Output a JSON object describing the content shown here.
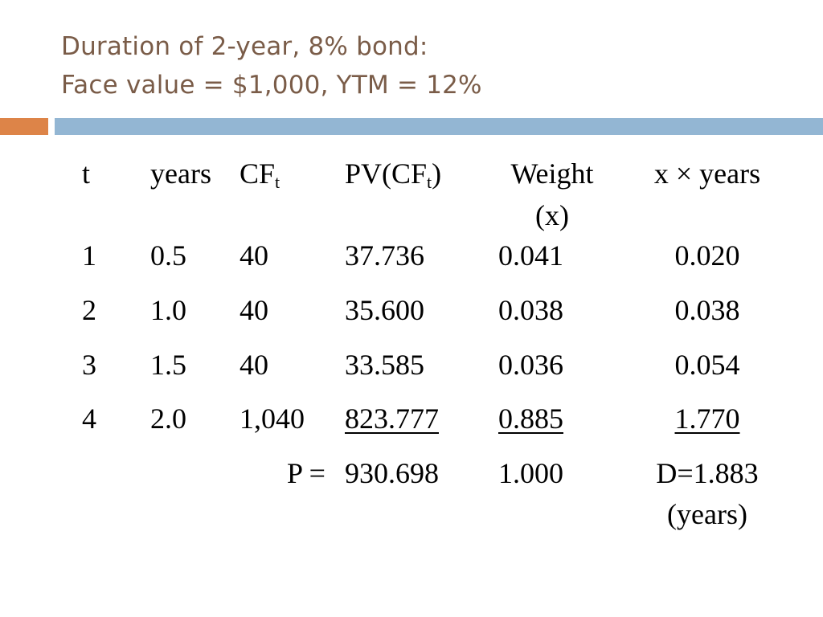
{
  "title": {
    "line1": "Duration of 2-year, 8% bond:",
    "line2": "Face value = $1,000, YTM = 12%"
  },
  "colors": {
    "title": "#7a5c48",
    "accent_orange": "#dd8448",
    "accent_blue": "#93b6d3"
  },
  "table": {
    "headers": {
      "t": "t",
      "years": "years",
      "cf_main": "CF",
      "cf_sub": "t",
      "pv_open": "PV(CF",
      "pv_sub": "t",
      "pv_close": ")",
      "weight_line1": "Weight",
      "weight_line2": "(x)",
      "xyears": "x × years"
    },
    "rows": [
      {
        "t": "1",
        "years": "0.5",
        "cf": "40",
        "pv": "37.736",
        "weight": "0.041",
        "xyears": "0.020"
      },
      {
        "t": "2",
        "years": "1.0",
        "cf": "40",
        "pv": "35.600",
        "weight": "0.038",
        "xyears": "0.038"
      },
      {
        "t": "3",
        "years": "1.5",
        "cf": "40",
        "pv": "33.585",
        "weight": "0.036",
        "xyears": "0.054"
      },
      {
        "t": "4",
        "years": "2.0",
        "cf": "1,040",
        "pv": "823.777",
        "weight": "0.885",
        "xyears": "1.770"
      }
    ],
    "totals": {
      "label": "P =",
      "pv": "930.698",
      "weight": "1.000",
      "duration_line1": "D=1.883",
      "duration_line2": "(years)"
    }
  }
}
